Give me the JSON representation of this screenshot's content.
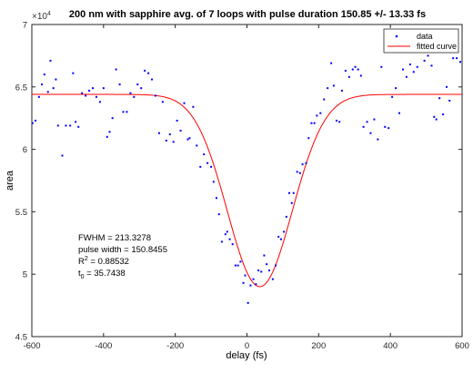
{
  "chart_data": {
    "type": "scatter",
    "title": "200 nm with sapphire avg. of 7 loops with pulse duration 150.85 +/- 13.33 fs",
    "xlabel": "delay (fs)",
    "ylabel": "area",
    "xlim": [
      -600,
      600
    ],
    "ylim": [
      45000,
      70000
    ],
    "x_ticks": [
      -600,
      -400,
      -200,
      0,
      200,
      400,
      600
    ],
    "x_tick_labels": [
      "-600",
      "-400",
      "-200",
      "0",
      "200",
      "400",
      "600"
    ],
    "y_ticks": [
      45000,
      50000,
      55000,
      60000,
      65000,
      70000
    ],
    "y_tick_labels": [
      "4.5",
      "5",
      "5.5",
      "6",
      "6.5",
      "7"
    ],
    "y_exponent_label": "×10",
    "y_exponent_power": "4",
    "grid": false,
    "legend_position": "top-right",
    "legend": [
      "data",
      "fitted curve"
    ],
    "series": [
      {
        "name": "data",
        "kind": "points",
        "color": "#0000ff",
        "points": [
          [
            -598,
            62100
          ],
          [
            -590,
            62300
          ],
          [
            -580,
            64200
          ],
          [
            -572,
            65200
          ],
          [
            -565,
            66000
          ],
          [
            -555,
            64600
          ],
          [
            -548,
            67100
          ],
          [
            -540,
            64900
          ],
          [
            -533,
            65600
          ],
          [
            -527,
            61900
          ],
          [
            -515,
            59500
          ],
          [
            -505,
            61900
          ],
          [
            -493,
            61900
          ],
          [
            -485,
            66100
          ],
          [
            -478,
            62200
          ],
          [
            -470,
            61800
          ],
          [
            -460,
            64500
          ],
          [
            -450,
            64300
          ],
          [
            -440,
            64700
          ],
          [
            -430,
            64900
          ],
          [
            -420,
            64200
          ],
          [
            -410,
            63800
          ],
          [
            -400,
            64900
          ],
          [
            -390,
            61000
          ],
          [
            -383,
            61400
          ],
          [
            -375,
            62500
          ],
          [
            -365,
            66400
          ],
          [
            -355,
            65200
          ],
          [
            -345,
            63000
          ],
          [
            -335,
            63000
          ],
          [
            -325,
            64500
          ],
          [
            -315,
            64200
          ],
          [
            -305,
            65200
          ],
          [
            -295,
            64900
          ],
          [
            -285,
            66300
          ],
          [
            -275,
            66100
          ],
          [
            -265,
            65600
          ],
          [
            -255,
            64300
          ],
          [
            -245,
            61300
          ],
          [
            -235,
            63800
          ],
          [
            -225,
            60700
          ],
          [
            -215,
            61200
          ],
          [
            -205,
            60600
          ],
          [
            -195,
            62300
          ],
          [
            -185,
            61500
          ],
          [
            -175,
            63700
          ],
          [
            -165,
            60800
          ],
          [
            -160,
            60900
          ],
          [
            -150,
            63400
          ],
          [
            -140,
            60300
          ],
          [
            -130,
            58600
          ],
          [
            -120,
            59600
          ],
          [
            -110,
            58900
          ],
          [
            -100,
            58600
          ],
          [
            -93,
            57400
          ],
          [
            -85,
            56100
          ],
          [
            -78,
            54800
          ],
          [
            -70,
            52600
          ],
          [
            -60,
            53200
          ],
          [
            -55,
            53400
          ],
          [
            -48,
            52800
          ],
          [
            -40,
            52400
          ],
          [
            -32,
            50700
          ],
          [
            -25,
            50700
          ],
          [
            -18,
            51000
          ],
          [
            -10,
            49300
          ],
          [
            -5,
            49900
          ],
          [
            3,
            47700
          ],
          [
            10,
            49100
          ],
          [
            18,
            49600
          ],
          [
            25,
            49200
          ],
          [
            32,
            50300
          ],
          [
            40,
            50200
          ],
          [
            48,
            51500
          ],
          [
            55,
            50800
          ],
          [
            62,
            50300
          ],
          [
            72,
            49600
          ],
          [
            80,
            50700
          ],
          [
            88,
            53000
          ],
          [
            95,
            52800
          ],
          [
            103,
            53400
          ],
          [
            110,
            54600
          ],
          [
            118,
            56500
          ],
          [
            125,
            55700
          ],
          [
            130,
            56500
          ],
          [
            140,
            58200
          ],
          [
            148,
            58100
          ],
          [
            155,
            58800
          ],
          [
            165,
            58900
          ],
          [
            172,
            60900
          ],
          [
            180,
            62100
          ],
          [
            188,
            62100
          ],
          [
            195,
            62700
          ],
          [
            205,
            62900
          ],
          [
            215,
            64000
          ],
          [
            225,
            64900
          ],
          [
            235,
            66900
          ],
          [
            242,
            65100
          ],
          [
            250,
            62300
          ],
          [
            258,
            62200
          ],
          [
            265,
            64700
          ],
          [
            275,
            66300
          ],
          [
            285,
            65800
          ],
          [
            295,
            66400
          ],
          [
            302,
            66600
          ],
          [
            310,
            66400
          ],
          [
            318,
            65900
          ],
          [
            325,
            61800
          ],
          [
            335,
            62200
          ],
          [
            345,
            61300
          ],
          [
            355,
            62400
          ],
          [
            365,
            60800
          ],
          [
            375,
            66600
          ],
          [
            385,
            61800
          ],
          [
            395,
            61700
          ],
          [
            405,
            64200
          ],
          [
            415,
            64900
          ],
          [
            425,
            62900
          ],
          [
            435,
            66400
          ],
          [
            445,
            65800
          ],
          [
            455,
            66800
          ],
          [
            465,
            66200
          ],
          [
            475,
            66600
          ],
          [
            485,
            68000
          ],
          [
            495,
            67100
          ],
          [
            505,
            67500
          ],
          [
            515,
            66700
          ],
          [
            522,
            62600
          ],
          [
            528,
            62400
          ],
          [
            537,
            64100
          ],
          [
            547,
            62800
          ],
          [
            557,
            65000
          ],
          [
            565,
            63900
          ],
          [
            575,
            67300
          ],
          [
            585,
            67300
          ],
          [
            595,
            67000
          ]
        ]
      },
      {
        "name": "fitted curve",
        "kind": "line",
        "color": "#ff0000",
        "model": "gaussian",
        "baseline": 64400,
        "amplitude": -15400,
        "center": 35.7438,
        "fwhm": 213.3278
      }
    ],
    "annotations": {
      "fwhm": "FWHM = 213.3278",
      "pulse_width": "pulse width = 150.8455",
      "r2_lead": "R",
      "r2_sup": "2",
      "r2_value": " = 0.88532",
      "t0_lead": "t",
      "t0_sub": "0",
      "t0_value": " = 35.7438"
    }
  }
}
